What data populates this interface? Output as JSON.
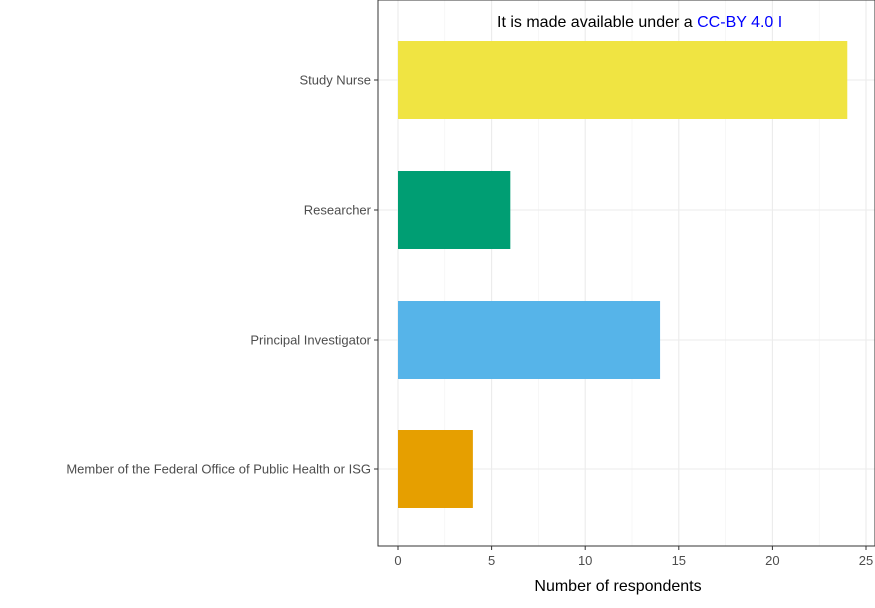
{
  "overlay": {
    "prefix": "It is made available under a ",
    "link": "CC-BY 4.0 I"
  },
  "chart_data": {
    "type": "bar",
    "orientation": "horizontal",
    "categories": [
      "Study Nurse",
      "Researcher",
      "Principal Investigator",
      "Member of the Federal Office of Public Health or ISG"
    ],
    "values": [
      24,
      6,
      14,
      4
    ],
    "colors": [
      "#F0E442",
      "#009E73",
      "#56B4E9",
      "#E69F00"
    ],
    "xlabel": "Number of respondents",
    "ylabel": "",
    "xlim": [
      0,
      25
    ],
    "xticks": [
      0,
      5,
      10,
      15,
      20,
      25
    ],
    "grid": true
  }
}
